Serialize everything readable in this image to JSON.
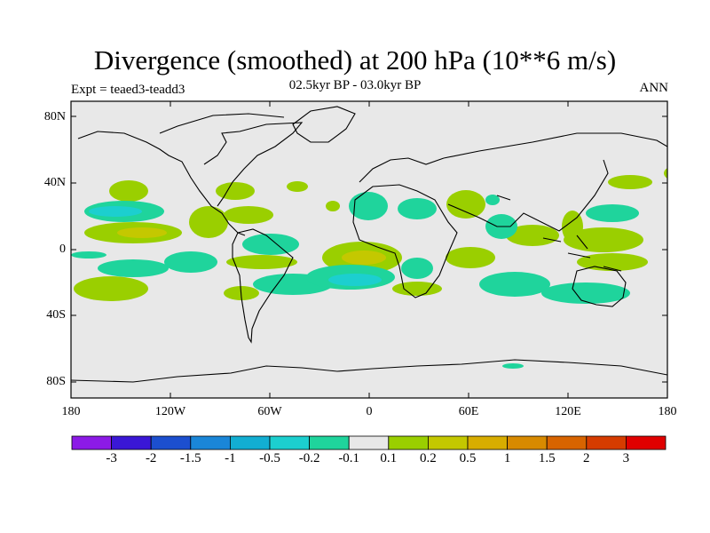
{
  "title": "Divergence (smoothed) at 200 hPa (10**6 m/s)",
  "subtitle": "02.5kyr BP - 03.0kyr BP",
  "expt_label": "Expt = teaed3-teadd3",
  "season_label": "ANN",
  "y_ticks": [
    "80N",
    "40N",
    "0",
    "40S",
    "80S"
  ],
  "x_ticks": [
    "180",
    "120W",
    "60W",
    "0",
    "60E",
    "120E",
    "180"
  ],
  "colorbar": {
    "colors": [
      "#8c1ae6",
      "#3a17d6",
      "#1c4fcf",
      "#1a86d8",
      "#12aed2",
      "#1ccfcf",
      "#1fd49c",
      "#e8e8e8",
      "#9acf00",
      "#c4c800",
      "#d8ad00",
      "#d88a00",
      "#d86400",
      "#d63c00",
      "#e00000"
    ],
    "labels": [
      "-3",
      "-2",
      "-1.5",
      "-1",
      "-0.5",
      "-0.2",
      "-0.1",
      "0.1",
      "0.2",
      "0.5",
      "1",
      "1.5",
      "2",
      "3"
    ]
  },
  "map": {
    "background_color": "#e8e8e8",
    "positive_low": "#9acf00",
    "positive_mid": "#c4c800",
    "positive_high": "#d8ad00",
    "negative_low": "#1fd49c",
    "negative_mid": "#1ccfcf",
    "negative_high": "#12aed2"
  }
}
